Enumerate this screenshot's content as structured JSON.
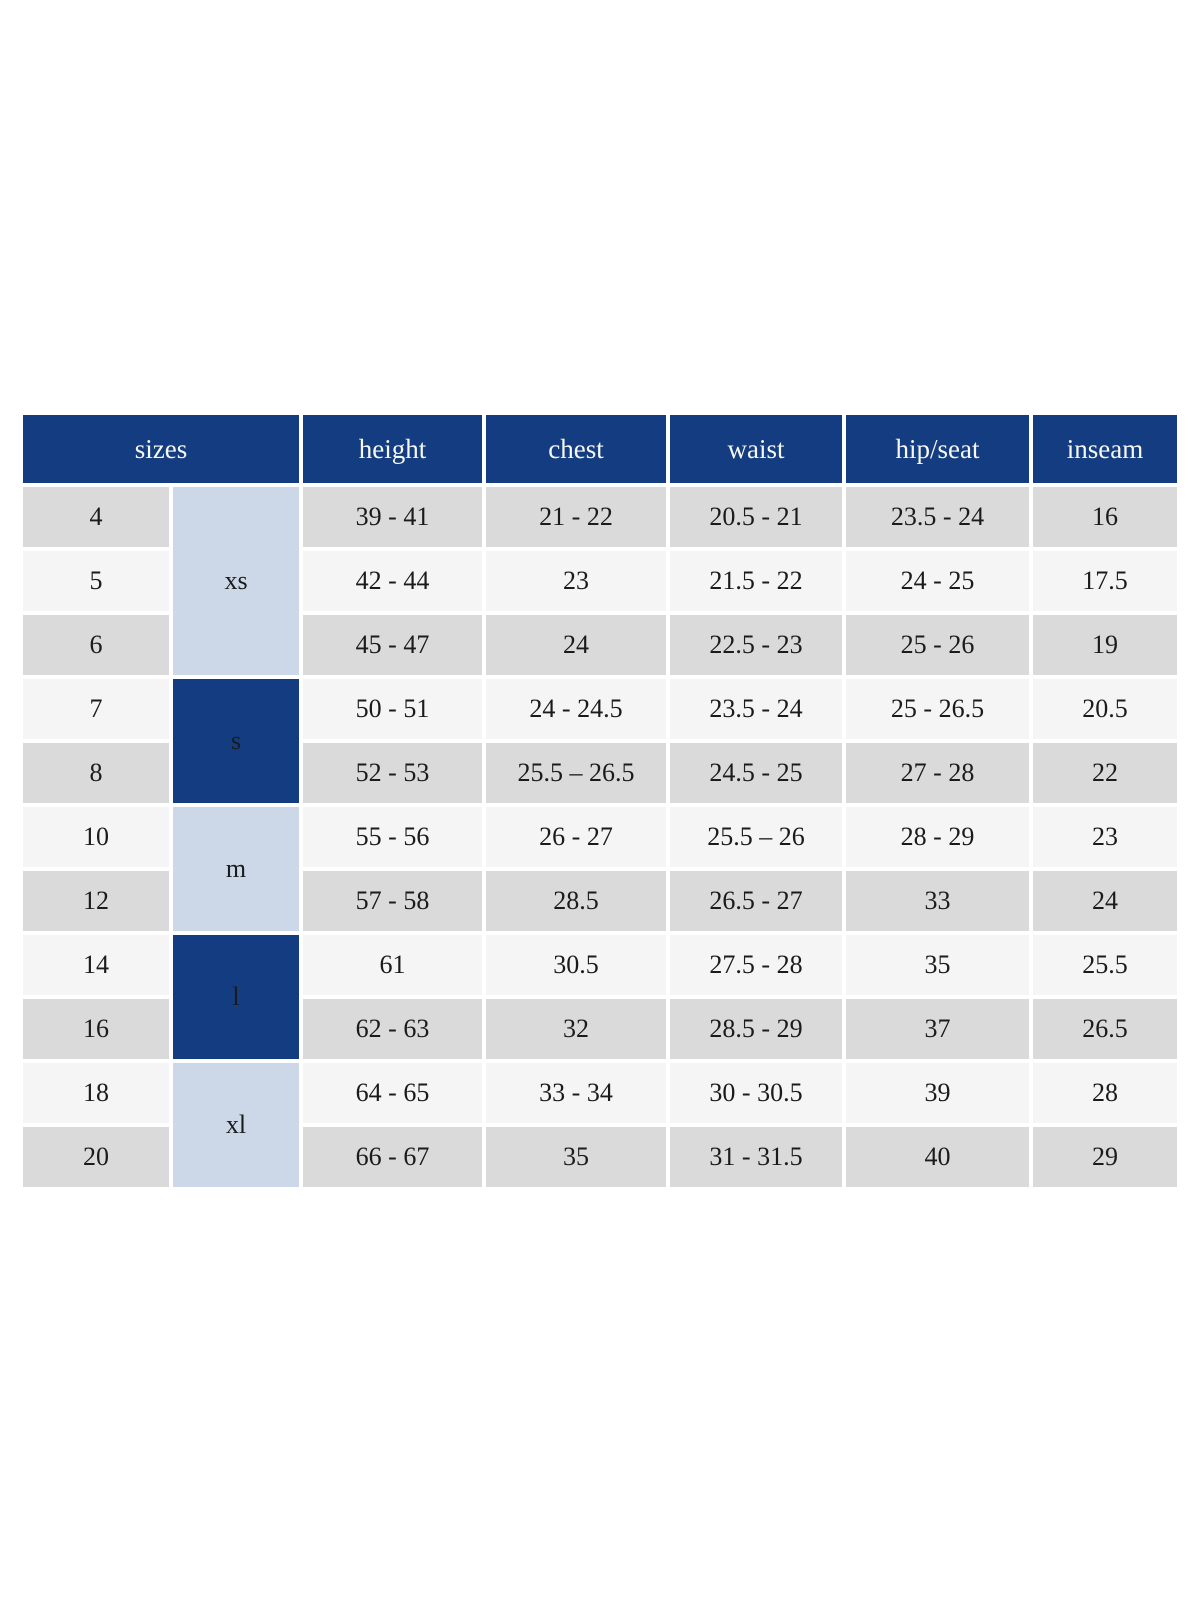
{
  "colors": {
    "navy": "#133d80",
    "group_light_blue": "#ccd8e8",
    "row_gray": "#dadada",
    "row_light": "#f5f5f5",
    "header_text": "#f7f7f5",
    "cell_text": "#1b1b1b",
    "page_background": "#ffffff"
  },
  "chart_data": {
    "type": "table",
    "header": {
      "sizes": "sizes",
      "measures": [
        "height",
        "chest",
        "waist",
        "hip/seat",
        "inseam"
      ]
    },
    "groups": [
      {
        "label": "xs",
        "style": "light",
        "rows": [
          {
            "size": "4",
            "height": "39 - 41",
            "chest": "21 - 22",
            "waist": "20.5 - 21",
            "hip_seat": "23.5 - 24",
            "inseam": "16"
          },
          {
            "size": "5",
            "height": "42 - 44",
            "chest": "23",
            "waist": "21.5 - 22",
            "hip_seat": "24 - 25",
            "inseam": "17.5"
          },
          {
            "size": "6",
            "height": "45 - 47",
            "chest": "24",
            "waist": "22.5 - 23",
            "hip_seat": "25 - 26",
            "inseam": "19"
          }
        ]
      },
      {
        "label": "s",
        "style": "dark",
        "rows": [
          {
            "size": "7",
            "height": "50 - 51",
            "chest": "24 - 24.5",
            "waist": "23.5 - 24",
            "hip_seat": "25 - 26.5",
            "inseam": "20.5"
          },
          {
            "size": "8",
            "height": "52 - 53",
            "chest": "25.5 – 26.5",
            "waist": "24.5 - 25",
            "hip_seat": "27 - 28",
            "inseam": "22"
          }
        ]
      },
      {
        "label": "m",
        "style": "light",
        "rows": [
          {
            "size": "10",
            "height": "55 - 56",
            "chest": "26 - 27",
            "waist": "25.5 – 26",
            "hip_seat": "28 - 29",
            "inseam": "23"
          },
          {
            "size": "12",
            "height": "57 - 58",
            "chest": "28.5",
            "waist": "26.5 - 27",
            "hip_seat": "33",
            "inseam": "24"
          }
        ]
      },
      {
        "label": "l",
        "style": "dark",
        "rows": [
          {
            "size": "14",
            "height": "61",
            "chest": "30.5",
            "waist": "27.5 - 28",
            "hip_seat": "35",
            "inseam": "25.5"
          },
          {
            "size": "16",
            "height": "62 - 63",
            "chest": "32",
            "waist": "28.5 - 29",
            "hip_seat": "37",
            "inseam": "26.5"
          }
        ]
      },
      {
        "label": "xl",
        "style": "light",
        "rows": [
          {
            "size": "18",
            "height": "64 - 65",
            "chest": "33 - 34",
            "waist": "30 - 30.5",
            "hip_seat": "39",
            "inseam": "28"
          },
          {
            "size": "20",
            "height": "66 - 67",
            "chest": "35",
            "waist": "31 - 31.5",
            "hip_seat": "40",
            "inseam": "29"
          }
        ]
      }
    ]
  }
}
